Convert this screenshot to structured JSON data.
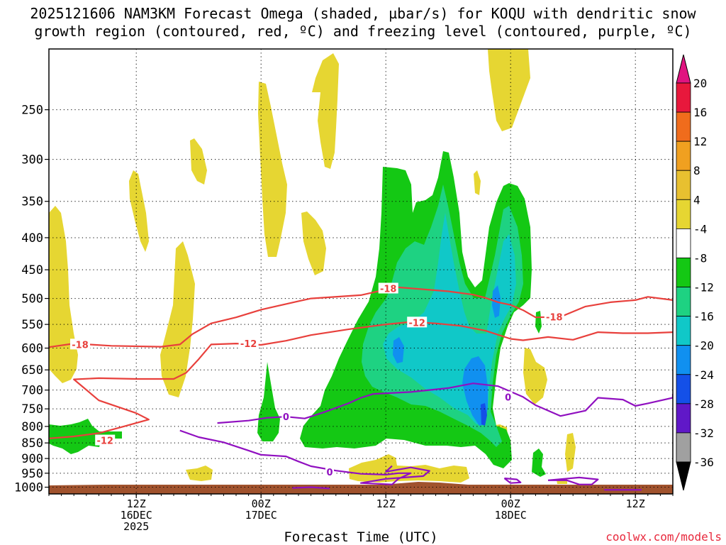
{
  "title": {
    "line1": "2025121606 NAM3KM Forecast Omega (shaded, µbar/s) for KOQU with dendritic snow",
    "line2": "growth region (contoured, red, ºC) and freezing level (contoured, purple, ºC)"
  },
  "credit": "coolwx.com/models",
  "chart_data": {
    "type": "heatmap",
    "title": "2025121606 NAM3KM Forecast Omega (shaded, µbar/s) for KOQU with dendritic snow growth region (contoured, red, ºC) and freezing level (contoured, purple, ºC)",
    "xlabel": "Forecast Time (UTC)",
    "ylabel": "",
    "x_range_hours": [
      -7,
      43
    ],
    "y_range_hPa": [
      1025,
      200
    ],
    "y_scale": "log",
    "x_ticks": [
      {
        "hour": 0,
        "lines": [
          "12Z",
          "16DEC",
          "2025"
        ]
      },
      {
        "hour": 10,
        "lines": [
          "00Z",
          "17DEC"
        ]
      },
      {
        "hour": 20,
        "lines": [
          "12Z"
        ]
      },
      {
        "hour": 30,
        "lines": [
          "00Z",
          "18DEC"
        ]
      },
      {
        "hour": 40,
        "lines": [
          "12Z"
        ]
      }
    ],
    "y_ticks": [
      250,
      300,
      350,
      400,
      450,
      500,
      550,
      600,
      650,
      700,
      750,
      800,
      850,
      900,
      950,
      1000
    ],
    "grid": true,
    "colorbar": {
      "labels": [
        "20",
        "16",
        "12",
        "8",
        "4",
        "-4",
        "-8",
        "-12",
        "-16",
        "-20",
        "-24",
        "-28",
        "-32",
        "-36"
      ],
      "colors": [
        "#e8183c",
        "#f06c1c",
        "#f0a020",
        "#e8c030",
        "#e6d632",
        "#ffffff",
        "#14c814",
        "#1ed282",
        "#10c8c8",
        "#1090f0",
        "#1450e8",
        "#6018c8",
        "#a010c8",
        "#a0a0a0"
      ],
      "top_color": "#e01480",
      "bottom_color": "#000000"
    },
    "contours": [
      {
        "name": "-18",
        "color": "#e8403c",
        "points": [
          [
            -7,
            598
          ],
          [
            -5,
            590
          ],
          [
            -2,
            595
          ],
          [
            2,
            597
          ],
          [
            3.5,
            592
          ],
          [
            4.5,
            570
          ],
          [
            6,
            548
          ],
          [
            8,
            536
          ],
          [
            10,
            521
          ],
          [
            13,
            505
          ],
          [
            14,
            500
          ],
          [
            18,
            494
          ],
          [
            20,
            484
          ],
          [
            21,
            480
          ],
          [
            25,
            487
          ],
          [
            27,
            493
          ],
          [
            28,
            499
          ],
          [
            29,
            507
          ],
          [
            30,
            512
          ],
          [
            31,
            522
          ],
          [
            32,
            536
          ],
          [
            34,
            535
          ],
          [
            36,
            515
          ],
          [
            38,
            507
          ],
          [
            40,
            503
          ],
          [
            41,
            497
          ],
          [
            43,
            503
          ]
        ],
        "labels": [
          {
            "hour": -4.5,
            "hPa": 592,
            "text": "-18"
          },
          {
            "hour": 20.2,
            "hPa": 482,
            "text": "-18"
          },
          {
            "hour": 33.5,
            "hPa": 535,
            "text": "-18"
          }
        ]
      },
      {
        "name": "-12",
        "color": "#e8403c",
        "points": [
          [
            -7,
            836
          ],
          [
            -5,
            830
          ],
          [
            -3,
            820
          ],
          [
            -1,
            800
          ],
          [
            1,
            780
          ],
          [
            0,
            762
          ],
          [
            -3,
            727
          ],
          [
            -5,
            673
          ],
          [
            -3,
            670
          ],
          [
            0,
            672
          ],
          [
            3,
            672
          ],
          [
            4,
            657
          ],
          [
            5,
            625
          ],
          [
            6,
            592
          ],
          [
            8,
            590
          ],
          [
            10,
            593
          ],
          [
            12,
            584
          ],
          [
            14,
            572
          ],
          [
            17,
            560
          ],
          [
            20,
            550
          ],
          [
            22,
            545
          ],
          [
            24,
            548
          ],
          [
            26,
            553
          ],
          [
            28,
            563
          ],
          [
            30,
            580
          ],
          [
            31,
            583
          ],
          [
            33,
            576
          ],
          [
            35,
            582
          ],
          [
            37,
            566
          ],
          [
            39,
            568
          ],
          [
            41,
            568
          ],
          [
            43,
            566
          ]
        ],
        "labels": [
          {
            "hour": -2.5,
            "hPa": 842,
            "text": "-12"
          },
          {
            "hour": 9,
            "hPa": 590,
            "text": "-12"
          },
          {
            "hour": 22.5,
            "hPa": 546,
            "text": "-12"
          }
        ]
      },
      {
        "name": "0",
        "color": "#9010c0",
        "points": [
          [
            3.5,
            812
          ],
          [
            5,
            832
          ],
          [
            7,
            848
          ],
          [
            9,
            874
          ],
          [
            10,
            888
          ],
          [
            12,
            893
          ],
          [
            13,
            910
          ],
          [
            14,
            926
          ],
          [
            16,
            941
          ],
          [
            18,
            952
          ],
          [
            20,
            955
          ],
          [
            21,
            950
          ],
          [
            22,
            950
          ],
          [
            21,
            970
          ],
          [
            20.5,
            990
          ],
          [
            18,
            985
          ],
          [
            20,
            970
          ],
          [
            23,
            960
          ],
          [
            23.5,
            942
          ],
          [
            22,
            930
          ],
          [
            20,
            945
          ],
          [
            20.5,
            925
          ]
        ],
        "labels": [
          {
            "hour": 15.5,
            "hPa": 945,
            "text": "0"
          }
        ]
      },
      {
        "name": "0",
        "color": "#9010c0",
        "points": [
          [
            6.5,
            790
          ],
          [
            9,
            783
          ],
          [
            10.5,
            775
          ],
          [
            12,
            772
          ],
          [
            13.5,
            777
          ],
          [
            15,
            760
          ],
          [
            17,
            735
          ],
          [
            18,
            720
          ],
          [
            19,
            710
          ],
          [
            22,
            705
          ],
          [
            25,
            695
          ],
          [
            27,
            683
          ],
          [
            29,
            690
          ],
          [
            31,
            718
          ],
          [
            32,
            740
          ],
          [
            34,
            770
          ],
          [
            36,
            755
          ],
          [
            37,
            720
          ],
          [
            39,
            725
          ],
          [
            40,
            742
          ],
          [
            41,
            735
          ],
          [
            43,
            720
          ],
          [
            43,
            710
          ]
        ],
        "labels": [
          {
            "hour": 12,
            "hPa": 772,
            "text": "0"
          },
          {
            "hour": 29.8,
            "hPa": 718,
            "text": "0"
          }
        ]
      },
      {
        "name": "0",
        "color": "#9010c0",
        "points": [
          [
            33,
            975
          ],
          [
            34.5,
            975
          ],
          [
            35.5,
            990
          ],
          [
            36.5,
            990
          ],
          [
            37,
            972
          ],
          [
            35.5,
            965
          ],
          [
            33,
            975
          ]
        ],
        "labels": []
      },
      {
        "name": "0",
        "color": "#9010c0",
        "points": [
          [
            29.5,
            968
          ],
          [
            30.5,
            972
          ],
          [
            30.8,
            983
          ],
          [
            30,
            985
          ],
          [
            29.5,
            968
          ]
        ],
        "labels": []
      },
      {
        "name": "0",
        "color": "#9010c0",
        "points": [
          [
            12.5,
            1003
          ],
          [
            14,
            1000
          ],
          [
            15.5,
            1005
          ]
        ],
        "labels": []
      },
      {
        "name": "0",
        "color": "#9010c0",
        "points": [
          [
            37.5,
            1010
          ],
          [
            40.5,
            1010
          ]
        ],
        "labels": []
      }
    ]
  }
}
